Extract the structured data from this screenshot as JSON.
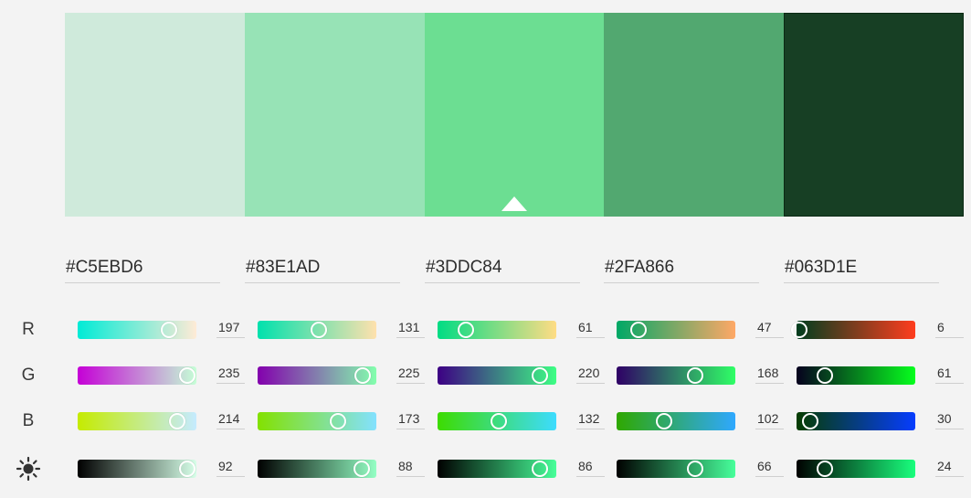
{
  "colors": [
    {
      "hex": "#C5EBD6",
      "swatch": "#cfeadb",
      "r": 197,
      "g": 235,
      "b": 214,
      "brightness": 92
    },
    {
      "hex": "#83E1AD",
      "swatch": "#97e3b6",
      "r": 131,
      "g": 225,
      "b": 173,
      "brightness": 88
    },
    {
      "hex": "#3DDC84",
      "swatch": "#6cde92",
      "r": 61,
      "g": 220,
      "b": 132,
      "brightness": 86
    },
    {
      "hex": "#2FA866",
      "swatch": "#52a870",
      "r": 47,
      "g": 168,
      "b": 102,
      "brightness": 66
    },
    {
      "hex": "#063D1E",
      "swatch": "#173f24",
      "r": 6,
      "g": 61,
      "b": 30,
      "brightness": 24
    }
  ],
  "selected_index": 2,
  "channels": [
    {
      "key": "r",
      "label": "R",
      "icon": null
    },
    {
      "key": "g",
      "label": "G",
      "icon": null
    },
    {
      "key": "b",
      "label": "B",
      "icon": null
    },
    {
      "key": "brightness",
      "label": "",
      "icon": "brightness-sun-icon"
    }
  ]
}
